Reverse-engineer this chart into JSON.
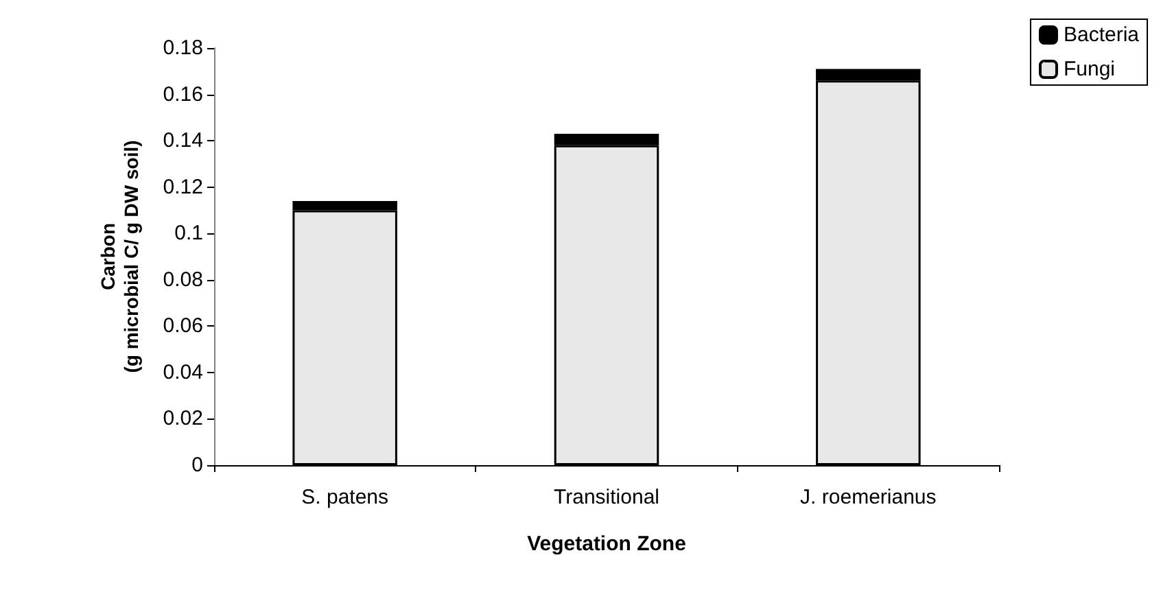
{
  "chart_data": {
    "type": "bar",
    "stacked": true,
    "xlabel": "Vegetation Zone",
    "ylabel": "Carbon\n(g microbial C/ g DW soil)",
    "categories": [
      "S. patens",
      "Transitional",
      "J. roemerianus"
    ],
    "series": [
      {
        "name": "Fungi",
        "color": "#e8e8e8",
        "values": [
          0.11,
          0.138,
          0.166
        ]
      },
      {
        "name": "Bacteria",
        "color": "#000000",
        "values": [
          0.004,
          0.005,
          0.005
        ]
      }
    ],
    "ylim": [
      0,
      0.18
    ],
    "yticks": [
      0,
      0.02,
      0.04,
      0.06,
      0.08,
      0.1,
      0.12,
      0.14,
      0.16,
      0.18
    ],
    "grid": false,
    "legend": "top right"
  }
}
